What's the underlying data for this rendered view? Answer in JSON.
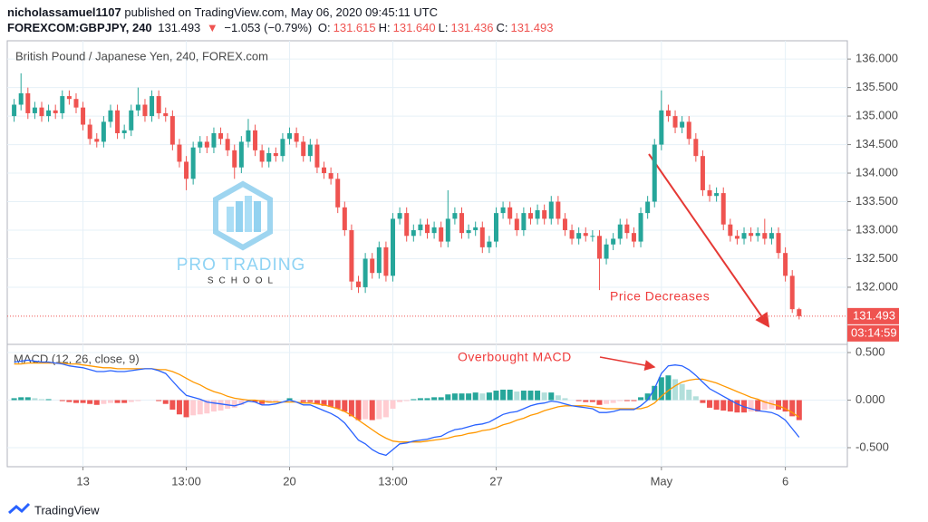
{
  "header": {
    "author": "nicholassamuel1107",
    "published": "published on TradingView.com, May 06, 2020 09:45:11 UTC",
    "symbol": "FOREXCOM:GBPJPY, 240",
    "last": "131.493",
    "arrow": "▼",
    "change": "−1.053 (−0.79%)",
    "ohlc": [
      {
        "label": "O:",
        "value": "131.615"
      },
      {
        "label": "H:",
        "value": "131.640"
      },
      {
        "label": "L:",
        "value": "131.436"
      },
      {
        "label": "C:",
        "value": "131.493"
      }
    ]
  },
  "annotations": [
    "Price Decreases",
    "Overbought MACD"
  ],
  "watermark": {
    "line1": "PRO TRADING",
    "line2": "SCHOOL"
  },
  "footer": "TradingView",
  "chart_data": [
    {
      "type": "candlestick",
      "title": "British Pound / Japanese Yen, 240, FOREX.com",
      "up_color": "#26a69a",
      "down_color": "#ef5350",
      "xlim": [
        -1,
        121
      ],
      "ylim": [
        131.03,
        136.32
      ],
      "xticks": [
        {
          "value": 10,
          "label": "13"
        },
        {
          "value": 25,
          "label": "13:00"
        },
        {
          "value": 40,
          "label": "20"
        },
        {
          "value": 55,
          "label": "13:00"
        },
        {
          "value": 70,
          "label": "27"
        },
        {
          "value": 94,
          "label": "May"
        },
        {
          "value": 112,
          "label": "6"
        }
      ],
      "yticks": [
        {
          "value": 132,
          "label": "132.000"
        },
        {
          "value": 132.5,
          "label": "132.500"
        },
        {
          "value": 133,
          "label": "133.000"
        },
        {
          "value": 133.5,
          "label": "133.500"
        },
        {
          "value": 134,
          "label": "134.000"
        },
        {
          "value": 134.5,
          "label": "134.500"
        },
        {
          "value": 135,
          "label": "135.000"
        },
        {
          "value": 135.5,
          "label": "135.500"
        },
        {
          "value": 136,
          "label": "136.000"
        }
      ],
      "grid": true,
      "last_price": {
        "value": 131.493,
        "label": "131.493"
      },
      "countdown": "03:14:59",
      "ohlc": [
        [
          135.0,
          135.3,
          134.9,
          135.2
        ],
        [
          135.2,
          135.75,
          135.1,
          135.4
        ],
        [
          135.4,
          135.5,
          134.95,
          135.05
        ],
        [
          135.05,
          135.25,
          134.95,
          135.15
        ],
        [
          135.15,
          135.25,
          134.9,
          135.0
        ],
        [
          135.0,
          135.2,
          134.9,
          135.1
        ],
        [
          135.1,
          135.2,
          134.95,
          135.05
        ],
        [
          135.05,
          135.45,
          134.95,
          135.35
        ],
        [
          135.35,
          135.45,
          135.2,
          135.3
        ],
        [
          135.3,
          135.4,
          135.05,
          135.15
        ],
        [
          135.15,
          135.25,
          134.75,
          134.85
        ],
        [
          134.85,
          134.95,
          134.5,
          134.6
        ],
        [
          134.6,
          134.7,
          134.45,
          134.55
        ],
        [
          134.55,
          135.0,
          134.45,
          134.9
        ],
        [
          134.9,
          135.2,
          134.8,
          135.1
        ],
        [
          135.1,
          135.2,
          134.6,
          134.7
        ],
        [
          134.7,
          134.85,
          134.6,
          134.75
        ],
        [
          134.75,
          135.2,
          134.65,
          135.1
        ],
        [
          135.1,
          135.5,
          135.0,
          135.2
        ],
        [
          135.2,
          135.3,
          134.9,
          135.0
        ],
        [
          135.0,
          135.45,
          134.9,
          135.35
        ],
        [
          135.35,
          135.45,
          134.95,
          135.05
        ],
        [
          135.05,
          135.15,
          134.9,
          135.0
        ],
        [
          135.0,
          135.1,
          134.4,
          134.5
        ],
        [
          134.5,
          134.6,
          134.1,
          134.2
        ],
        [
          134.2,
          134.3,
          133.7,
          133.9
        ],
        [
          133.9,
          134.55,
          133.8,
          134.45
        ],
        [
          134.45,
          134.65,
          134.35,
          134.55
        ],
        [
          134.55,
          134.65,
          134.35,
          134.45
        ],
        [
          134.45,
          134.8,
          134.35,
          134.7
        ],
        [
          134.7,
          134.8,
          134.5,
          134.6
        ],
        [
          134.6,
          134.7,
          134.3,
          134.4
        ],
        [
          134.4,
          134.5,
          133.9,
          134.1
        ],
        [
          134.1,
          134.65,
          134.0,
          134.55
        ],
        [
          134.55,
          134.95,
          134.45,
          134.75
        ],
        [
          134.75,
          134.85,
          134.3,
          134.4
        ],
        [
          134.4,
          134.5,
          134.1,
          134.2
        ],
        [
          134.2,
          134.45,
          134.1,
          134.35
        ],
        [
          134.35,
          134.45,
          134.2,
          134.3
        ],
        [
          134.3,
          134.7,
          134.2,
          134.6
        ],
        [
          134.6,
          134.8,
          134.5,
          134.7
        ],
        [
          134.7,
          134.8,
          134.45,
          134.55
        ],
        [
          134.55,
          134.65,
          134.2,
          134.3
        ],
        [
          134.3,
          134.6,
          134.2,
          134.5
        ],
        [
          134.5,
          134.6,
          134.0,
          134.1
        ],
        [
          134.1,
          134.2,
          133.9,
          134.0
        ],
        [
          134.0,
          134.1,
          133.8,
          133.9
        ],
        [
          133.9,
          134.0,
          133.3,
          133.4
        ],
        [
          133.4,
          133.5,
          132.9,
          133.0
        ],
        [
          133.0,
          133.1,
          131.95,
          132.1
        ],
        [
          132.1,
          132.2,
          131.9,
          132.0
        ],
        [
          132.0,
          132.6,
          131.9,
          132.5
        ],
        [
          132.5,
          132.6,
          132.15,
          132.25
        ],
        [
          132.25,
          132.8,
          132.15,
          132.7
        ],
        [
          132.7,
          132.8,
          132.1,
          132.2
        ],
        [
          132.2,
          133.3,
          132.1,
          133.2
        ],
        [
          133.2,
          133.4,
          133.1,
          133.3
        ],
        [
          133.3,
          133.4,
          132.8,
          132.9
        ],
        [
          132.9,
          133.1,
          132.8,
          133.0
        ],
        [
          133.0,
          133.2,
          132.9,
          133.1
        ],
        [
          133.1,
          133.2,
          132.85,
          132.95
        ],
        [
          132.95,
          133.15,
          132.85,
          133.05
        ],
        [
          133.05,
          133.15,
          132.7,
          132.8
        ],
        [
          132.8,
          133.7,
          132.7,
          133.2
        ],
        [
          133.2,
          133.4,
          133.1,
          133.3
        ],
        [
          133.3,
          133.4,
          132.85,
          132.95
        ],
        [
          132.95,
          133.1,
          132.85,
          133.0
        ],
        [
          133.0,
          133.15,
          132.9,
          133.05
        ],
        [
          133.05,
          133.15,
          132.6,
          132.7
        ],
        [
          132.7,
          132.9,
          132.6,
          132.8
        ],
        [
          132.8,
          133.4,
          132.7,
          133.3
        ],
        [
          133.3,
          133.5,
          133.2,
          133.4
        ],
        [
          133.4,
          133.5,
          133.1,
          133.2
        ],
        [
          133.2,
          133.3,
          132.9,
          133.0
        ],
        [
          133.0,
          133.4,
          132.9,
          133.3
        ],
        [
          133.3,
          133.4,
          133.1,
          133.2
        ],
        [
          133.2,
          133.45,
          133.1,
          133.35
        ],
        [
          133.35,
          133.45,
          133.1,
          133.2
        ],
        [
          133.2,
          133.6,
          133.1,
          133.5
        ],
        [
          133.5,
          133.6,
          133.1,
          133.2
        ],
        [
          133.2,
          133.3,
          132.9,
          133.0
        ],
        [
          133.0,
          133.1,
          132.75,
          132.85
        ],
        [
          132.85,
          133.05,
          132.75,
          132.95
        ],
        [
          132.95,
          133.05,
          132.8,
          132.9
        ],
        [
          132.9,
          133.0,
          132.8,
          132.9
        ],
        [
          132.9,
          133.0,
          131.95,
          132.5
        ],
        [
          132.5,
          132.85,
          132.4,
          132.75
        ],
        [
          132.75,
          132.95,
          132.65,
          132.85
        ],
        [
          132.85,
          133.2,
          132.75,
          133.1
        ],
        [
          133.1,
          133.2,
          132.85,
          132.95
        ],
        [
          132.95,
          133.05,
          132.7,
          132.8
        ],
        [
          132.8,
          133.4,
          132.7,
          133.3
        ],
        [
          133.3,
          133.6,
          133.2,
          133.5
        ],
        [
          133.5,
          134.6,
          133.4,
          134.5
        ],
        [
          134.5,
          135.45,
          134.4,
          135.1
        ],
        [
          135.1,
          135.2,
          134.9,
          135.0
        ],
        [
          135.0,
          135.1,
          134.7,
          134.8
        ],
        [
          134.8,
          135.0,
          134.7,
          134.9
        ],
        [
          134.9,
          135.0,
          134.5,
          134.6
        ],
        [
          134.6,
          134.7,
          134.2,
          134.3
        ],
        [
          134.3,
          134.4,
          133.6,
          133.7
        ],
        [
          133.7,
          133.8,
          133.5,
          133.6
        ],
        [
          133.6,
          133.75,
          133.5,
          133.65
        ],
        [
          133.65,
          133.75,
          133.0,
          133.1
        ],
        [
          133.1,
          133.2,
          132.8,
          132.9
        ],
        [
          132.9,
          133.0,
          132.75,
          132.85
        ],
        [
          132.85,
          133.05,
          132.75,
          132.95
        ],
        [
          132.95,
          133.05,
          132.8,
          132.9
        ],
        [
          132.9,
          133.05,
          132.8,
          132.95
        ],
        [
          132.95,
          133.2,
          132.75,
          132.85
        ],
        [
          132.85,
          133.05,
          132.75,
          132.95
        ],
        [
          132.95,
          133.05,
          132.5,
          132.6
        ],
        [
          132.6,
          132.7,
          132.1,
          132.2
        ],
        [
          132.2,
          132.3,
          131.55,
          131.615
        ],
        [
          131.615,
          131.64,
          131.436,
          131.493
        ]
      ]
    },
    {
      "type": "macd",
      "title": "MACD (12, 26, close, 9)",
      "xlim": [
        -1,
        121
      ],
      "ylim": [
        -0.7,
        0.586
      ],
      "yticks": [
        {
          "value": -0.5,
          "label": "-0.500"
        },
        {
          "value": 0,
          "label": "0.000"
        },
        {
          "value": 0.5,
          "label": "0.500"
        }
      ],
      "grid": true,
      "macd_line": {
        "color": "#2962ff",
        "values": [
          0.4,
          0.41,
          0.42,
          0.41,
          0.4,
          0.4,
          0.39,
          0.38,
          0.36,
          0.35,
          0.34,
          0.32,
          0.3,
          0.3,
          0.31,
          0.3,
          0.3,
          0.31,
          0.32,
          0.33,
          0.33,
          0.31,
          0.28,
          0.2,
          0.12,
          0.05,
          0.03,
          0.01,
          -0.02,
          -0.03,
          -0.04,
          -0.05,
          -0.06,
          -0.04,
          -0.01,
          -0.02,
          -0.05,
          -0.05,
          -0.04,
          -0.02,
          0.0,
          -0.02,
          -0.05,
          -0.05,
          -0.08,
          -0.11,
          -0.14,
          -0.18,
          -0.24,
          -0.33,
          -0.42,
          -0.46,
          -0.52,
          -0.56,
          -0.58,
          -0.52,
          -0.46,
          -0.45,
          -0.43,
          -0.42,
          -0.41,
          -0.39,
          -0.38,
          -0.34,
          -0.31,
          -0.3,
          -0.28,
          -0.26,
          -0.25,
          -0.23,
          -0.19,
          -0.15,
          -0.13,
          -0.12,
          -0.09,
          -0.06,
          -0.04,
          -0.03,
          -0.01,
          -0.02,
          -0.04,
          -0.06,
          -0.07,
          -0.08,
          -0.09,
          -0.13,
          -0.13,
          -0.12,
          -0.1,
          -0.1,
          -0.1,
          -0.06,
          0.0,
          0.12,
          0.28,
          0.36,
          0.37,
          0.36,
          0.32,
          0.26,
          0.19,
          0.12,
          0.08,
          0.04,
          0.0,
          -0.04,
          -0.07,
          -0.09,
          -0.11,
          -0.12,
          -0.13,
          -0.16,
          -0.21,
          -0.3,
          -0.39
        ]
      },
      "signal_line": {
        "color": "#ff9800",
        "values": [
          0.38,
          0.38,
          0.39,
          0.39,
          0.39,
          0.39,
          0.39,
          0.39,
          0.38,
          0.38,
          0.37,
          0.36,
          0.35,
          0.34,
          0.34,
          0.33,
          0.33,
          0.33,
          0.33,
          0.33,
          0.33,
          0.32,
          0.32,
          0.3,
          0.27,
          0.23,
          0.19,
          0.16,
          0.12,
          0.09,
          0.07,
          0.04,
          0.02,
          0.01,
          0.0,
          0.0,
          -0.01,
          -0.02,
          -0.02,
          -0.02,
          -0.02,
          -0.02,
          -0.03,
          -0.03,
          -0.04,
          -0.05,
          -0.07,
          -0.09,
          -0.12,
          -0.16,
          -0.21,
          -0.26,
          -0.31,
          -0.36,
          -0.4,
          -0.43,
          -0.44,
          -0.44,
          -0.44,
          -0.44,
          -0.43,
          -0.42,
          -0.41,
          -0.4,
          -0.38,
          -0.37,
          -0.35,
          -0.34,
          -0.32,
          -0.31,
          -0.29,
          -0.26,
          -0.24,
          -0.21,
          -0.19,
          -0.16,
          -0.14,
          -0.11,
          -0.09,
          -0.07,
          -0.06,
          -0.06,
          -0.06,
          -0.06,
          -0.07,
          -0.08,
          -0.09,
          -0.09,
          -0.09,
          -0.09,
          -0.09,
          -0.09,
          -0.07,
          -0.03,
          0.04,
          0.1,
          0.15,
          0.19,
          0.21,
          0.22,
          0.22,
          0.2,
          0.18,
          0.15,
          0.12,
          0.09,
          0.06,
          0.03,
          0.01,
          -0.02,
          -0.04,
          -0.06,
          -0.09,
          -0.13,
          -0.18
        ]
      },
      "histogram": {
        "colors": {
          "rising_up": "#26a69a",
          "falling_up": "#b2dfdb",
          "falling_down": "#ef5350",
          "rising_down": "#ffcdd2"
        },
        "values": [
          0.02,
          0.03,
          0.03,
          0.02,
          0.01,
          0.01,
          0.0,
          -0.01,
          -0.02,
          -0.03,
          -0.03,
          -0.04,
          -0.05,
          -0.04,
          -0.03,
          -0.03,
          -0.03,
          -0.02,
          -0.01,
          0.0,
          0.0,
          -0.01,
          -0.04,
          -0.1,
          -0.15,
          -0.18,
          -0.16,
          -0.15,
          -0.14,
          -0.12,
          -0.11,
          -0.09,
          -0.08,
          -0.05,
          -0.01,
          -0.02,
          -0.04,
          -0.03,
          -0.02,
          0.0,
          0.02,
          0.0,
          -0.02,
          -0.02,
          -0.04,
          -0.06,
          -0.07,
          -0.09,
          -0.12,
          -0.17,
          -0.21,
          -0.2,
          -0.21,
          -0.2,
          -0.18,
          -0.09,
          -0.02,
          -0.01,
          0.01,
          0.02,
          0.02,
          0.03,
          0.03,
          0.06,
          0.07,
          0.07,
          0.07,
          0.08,
          0.07,
          0.08,
          0.1,
          0.11,
          0.11,
          0.09,
          0.1,
          0.1,
          0.1,
          0.08,
          0.08,
          0.05,
          0.02,
          0.0,
          -0.01,
          -0.02,
          -0.02,
          -0.05,
          -0.04,
          -0.03,
          -0.01,
          -0.01,
          -0.01,
          0.03,
          0.07,
          0.15,
          0.24,
          0.26,
          0.22,
          0.17,
          0.11,
          0.04,
          -0.03,
          -0.08,
          -0.1,
          -0.11,
          -0.12,
          -0.13,
          -0.13,
          -0.12,
          -0.12,
          -0.1,
          -0.09,
          -0.1,
          -0.12,
          -0.17,
          -0.21
        ]
      }
    }
  ]
}
